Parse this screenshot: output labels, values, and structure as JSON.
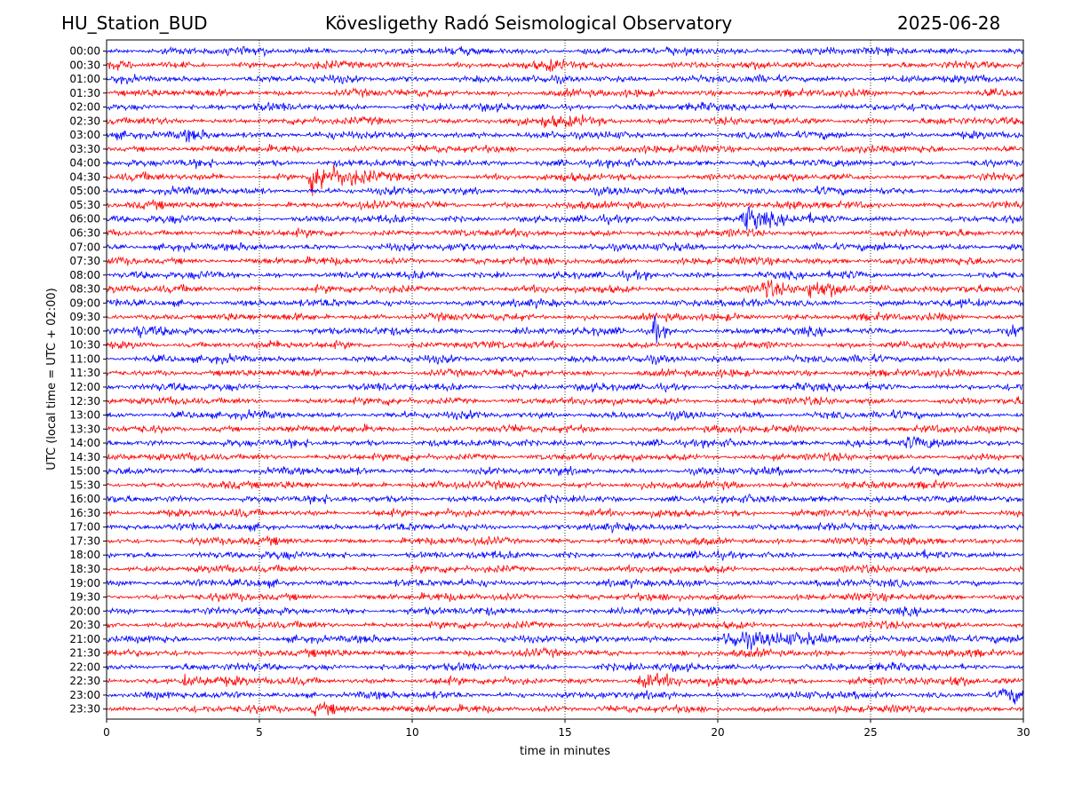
{
  "header": {
    "station": "HU_Station_BUD",
    "observatory": "Kövesligethy Radó Seismological Observatory",
    "date": "2025-06-28"
  },
  "chart_data": {
    "type": "line",
    "subtype": "helicorder",
    "xlabel": "time in minutes",
    "ylabel": "UTC (local time = UTC + 02:00)",
    "xlim": [
      0,
      30
    ],
    "x_ticks": [
      0,
      5,
      10,
      15,
      20,
      25,
      30
    ],
    "row_labels": [
      "00:00",
      "00:30",
      "01:00",
      "01:30",
      "02:00",
      "02:30",
      "03:00",
      "03:30",
      "04:00",
      "04:30",
      "05:00",
      "05:30",
      "06:00",
      "06:30",
      "07:00",
      "07:30",
      "08:00",
      "08:30",
      "09:00",
      "09:30",
      "10:00",
      "10:30",
      "11:00",
      "11:30",
      "12:00",
      "12:30",
      "13:00",
      "13:30",
      "14:00",
      "14:30",
      "15:00",
      "15:30",
      "16:00",
      "16:30",
      "17:00",
      "17:30",
      "18:00",
      "18:30",
      "19:00",
      "19:30",
      "20:00",
      "20:30",
      "21:00",
      "21:30",
      "22:00",
      "22:30",
      "23:00",
      "23:30"
    ],
    "grid": "vertical-dotted",
    "colors": {
      "even_rows": "#0000ff",
      "odd_rows": "#ff0000"
    },
    "events": [
      {
        "row": "00:30",
        "t": 14.5,
        "amp": 1.0,
        "dur": 0.7
      },
      {
        "row": "02:30",
        "t": 14.3,
        "amp": 1.4,
        "dur": 1.2
      },
      {
        "row": "03:00",
        "t": 2.6,
        "amp": 1.1,
        "dur": 1.2
      },
      {
        "row": "04:30",
        "t": 6.7,
        "amp": 6.0,
        "dur": 1.0
      },
      {
        "row": "06:00",
        "t": 20.9,
        "amp": 4.0,
        "dur": 0.8
      },
      {
        "row": "08:30",
        "t": 21.5,
        "amp": 3.0,
        "dur": 0.6
      },
      {
        "row": "08:30",
        "t": 23.0,
        "amp": 2.0,
        "dur": 2.0
      },
      {
        "row": "10:00",
        "t": 1.0,
        "amp": 2.0,
        "dur": 0.4
      },
      {
        "row": "10:00",
        "t": 17.9,
        "amp": 5.0,
        "dur": 0.2
      },
      {
        "row": "10:00",
        "t": 29.5,
        "amp": 1.5,
        "dur": 1.0
      },
      {
        "row": "14:00",
        "t": 26.2,
        "amp": 1.5,
        "dur": 0.8
      },
      {
        "row": "21:00",
        "t": 20.3,
        "amp": 2.5,
        "dur": 2.5
      },
      {
        "row": "22:30",
        "t": 2.5,
        "amp": 1.8,
        "dur": 1.0
      },
      {
        "row": "22:30",
        "t": 17.5,
        "amp": 1.5,
        "dur": 1.5
      },
      {
        "row": "22:30",
        "t": 27.7,
        "amp": 1.6,
        "dur": 0.7
      },
      {
        "row": "23:00",
        "t": 29.3,
        "amp": 1.8,
        "dur": 1.0
      },
      {
        "row": "23:30",
        "t": 6.8,
        "amp": 1.6,
        "dur": 1.2
      }
    ]
  }
}
